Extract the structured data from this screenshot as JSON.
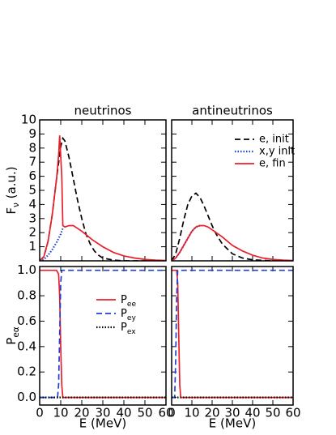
{
  "chart_data": [
    {
      "type": "line",
      "title": "neutrinos",
      "ylabel": "Fν (a.u.)",
      "xlim": [
        0,
        60
      ],
      "xticks": [
        0,
        10,
        20,
        30,
        40,
        50,
        60
      ],
      "ylim": [
        0,
        10
      ],
      "yticks": [
        1,
        2,
        3,
        4,
        5,
        6,
        7,
        8,
        9,
        10
      ],
      "series": [
        {
          "name": "e, init",
          "color": "#000000",
          "dash": "dashed",
          "x": [
            0,
            2,
            4,
            6,
            8,
            10,
            11,
            12,
            14,
            16,
            18,
            20,
            22,
            24,
            26,
            28,
            30,
            35,
            40,
            60
          ],
          "values": [
            0,
            0.3,
            1.4,
            3.3,
            5.8,
            8.1,
            8.7,
            8.5,
            7.3,
            5.8,
            4.3,
            3.0,
            1.9,
            1.2,
            0.7,
            0.4,
            0.2,
            0.05,
            0,
            0
          ]
        },
        {
          "name": "x,y init",
          "color": "#1f3fd8",
          "dash": "dotted",
          "x": [
            0,
            2,
            4,
            6,
            8,
            10,
            11
          ],
          "values": [
            0,
            0.1,
            0.4,
            0.8,
            1.3,
            1.9,
            2.3
          ]
        },
        {
          "name": "e, fin",
          "color": "#e8202a",
          "dash": "solid",
          "x": [
            0,
            2,
            4,
            6,
            8,
            9,
            9.5,
            10.5,
            11,
            12,
            14,
            16,
            18,
            20,
            25,
            30,
            35,
            40,
            45,
            50,
            55,
            60
          ],
          "values": [
            0,
            0.3,
            1.4,
            3.3,
            5.8,
            7.5,
            8.9,
            6.0,
            2.5,
            2.4,
            2.5,
            2.5,
            2.3,
            2.1,
            1.5,
            1.0,
            0.6,
            0.35,
            0.2,
            0.1,
            0.05,
            0.02
          ]
        }
      ]
    },
    {
      "type": "line",
      "title": "antineutrinos",
      "legend": "upper right",
      "xlim": [
        0,
        60
      ],
      "xticks": [
        0,
        10,
        20,
        30,
        40,
        50,
        60
      ],
      "ylim": [
        0,
        10
      ],
      "yticks": [
        1,
        2,
        3,
        4,
        5,
        6,
        7,
        8,
        9,
        10
      ],
      "series": [
        {
          "name": "e, init",
          "color": "#000000",
          "dash": "dashed",
          "x": [
            0,
            2,
            4,
            6,
            8,
            10,
            12,
            14,
            16,
            18,
            20,
            22,
            25,
            30,
            35,
            40,
            50,
            60
          ],
          "values": [
            0,
            0.5,
            1.6,
            2.9,
            4.0,
            4.6,
            4.8,
            4.5,
            3.9,
            3.2,
            2.5,
            1.9,
            1.2,
            0.5,
            0.2,
            0.07,
            0,
            0
          ]
        },
        {
          "name": "x,y init",
          "color": "#1f3fd8",
          "dash": "dotted",
          "x": [
            0,
            2,
            4,
            6,
            8,
            10,
            12,
            14
          ],
          "values": [
            0,
            0.2,
            0.6,
            1.1,
            1.6,
            2.1,
            2.4,
            2.5
          ]
        },
        {
          "name": "e, fin",
          "color": "#e8202a",
          "dash": "solid",
          "x": [
            0,
            2,
            4,
            6,
            8,
            10,
            12,
            14,
            16,
            18,
            20,
            25,
            30,
            35,
            40,
            45,
            50,
            55,
            60
          ],
          "values": [
            0,
            0.2,
            0.6,
            1.1,
            1.6,
            2.1,
            2.4,
            2.5,
            2.5,
            2.4,
            2.2,
            1.7,
            1.1,
            0.7,
            0.4,
            0.2,
            0.1,
            0.05,
            0.02
          ]
        }
      ]
    },
    {
      "type": "line",
      "ylabel": "Peα",
      "xlabel": "E (MeV)",
      "legend": "upper right",
      "xlim": [
        0,
        60
      ],
      "xticks": [
        0,
        10,
        20,
        30,
        40,
        50,
        60
      ],
      "ylim": [
        -0.06,
        1.03
      ],
      "yticks": [
        {
          "value": 0,
          "label": "0.0"
        },
        {
          "value": 0.2,
          "label": "0.2"
        },
        {
          "value": 0.4,
          "label": "0.4"
        },
        {
          "value": 0.6,
          "label": "0.6"
        },
        {
          "value": 0.8,
          "label": "0.8"
        },
        {
          "value": 1,
          "label": "1.0"
        }
      ],
      "series": [
        {
          "name": "Pee",
          "color": "#e8202a",
          "dash": "solid",
          "x": [
            0,
            8,
            9,
            9.5,
            10,
            10.5,
            11,
            60
          ],
          "values": [
            1,
            1,
            0.97,
            0.8,
            0.4,
            0.1,
            0,
            0
          ]
        },
        {
          "name": "Pey",
          "color": "#1f3fd8",
          "dash": "dashed",
          "x": [
            0,
            8.5,
            9,
            9.5,
            10,
            10.5,
            60
          ],
          "values": [
            0,
            0,
            0.1,
            0.5,
            0.9,
            1,
            1
          ]
        },
        {
          "name": "Pex",
          "color": "#000000",
          "dash": "dotted",
          "x": [
            0,
            60
          ],
          "values": [
            0,
            0
          ]
        }
      ]
    },
    {
      "type": "line",
      "xlabel": "E (MeV)",
      "xlim": [
        0,
        60
      ],
      "xticks": [
        0,
        10,
        20,
        30,
        40,
        50,
        60
      ],
      "ylim": [
        -0.06,
        1.03
      ],
      "yticks": [
        {
          "value": 0,
          "label": "0.0"
        },
        {
          "value": 0.2,
          "label": "0.2"
        },
        {
          "value": 0.4,
          "label": "0.4"
        },
        {
          "value": 0.6,
          "label": "0.6"
        },
        {
          "value": 0.8,
          "label": "0.8"
        },
        {
          "value": 1,
          "label": "1.0"
        }
      ],
      "series": [
        {
          "name": "Pee",
          "color": "#e8202a",
          "dash": "solid",
          "x": [
            0,
            2.5,
            3,
            3.5,
            4,
            4.5,
            60
          ],
          "values": [
            1,
            1,
            0.9,
            0.5,
            0.1,
            0,
            0
          ]
        },
        {
          "name": "Pey",
          "color": "#1f3fd8",
          "dash": "dashed",
          "x": [
            0,
            1.5,
            2,
            2.5,
            3,
            60
          ],
          "values": [
            0,
            0,
            0.3,
            0.8,
            1,
            1
          ]
        },
        {
          "name": "Pex",
          "color": "#000000",
          "dash": "dotted",
          "x": [
            0,
            60
          ],
          "values": [
            0,
            0
          ]
        }
      ]
    }
  ]
}
